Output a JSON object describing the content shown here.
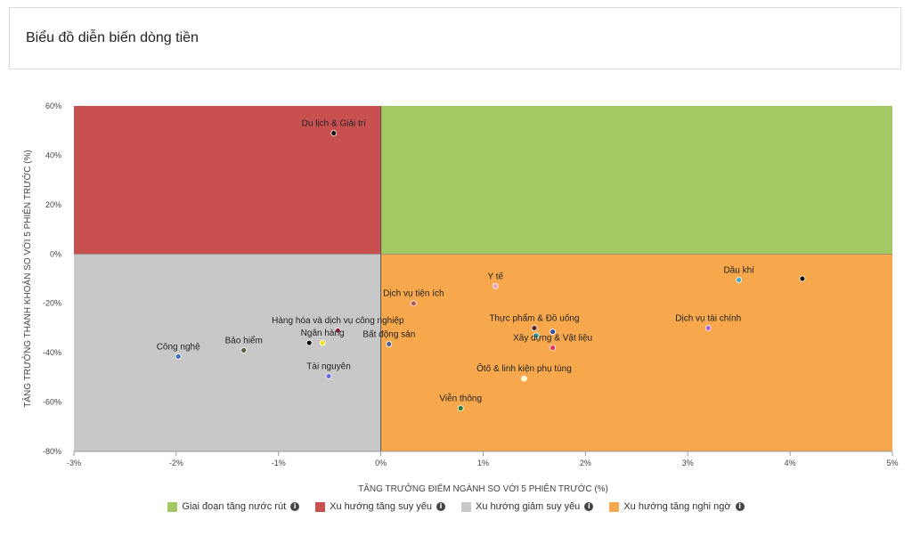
{
  "header": {
    "title": "Biểu đồ diễn biến dòng tiền"
  },
  "colors": {
    "green": "#a3c964",
    "red": "#c85150",
    "gray": "#c8c8c8",
    "orange": "#f8a84c"
  },
  "legend": [
    {
      "label": "Giai đoạn tăng nước rút",
      "color": "#a3c964",
      "icon": "info-icon"
    },
    {
      "label": "Xu hướng tăng suy yếu",
      "color": "#c85150",
      "icon": "info-icon"
    },
    {
      "label": "Xu hướng giảm suy yếu",
      "color": "#c8c8c8",
      "icon": "info-icon"
    },
    {
      "label": "Xu hướng tăng nghi ngờ",
      "color": "#f8a84c",
      "icon": "info-icon"
    }
  ],
  "chart_data": {
    "type": "scatter",
    "title": "Biểu đồ diễn biến dòng tiền",
    "xlabel": "TĂNG TRƯỞNG ĐIỂM NGÀNH SO VỚI 5 PHIÊN TRƯỚC (%)",
    "ylabel": "TĂNG TRƯỞNG THANH KHOẢN SO VỚI 5 PHIÊN TRƯỚC (%)",
    "xlim": [
      -3,
      5
    ],
    "ylim": [
      -80,
      60
    ],
    "xticks": [
      -3,
      -2,
      -1,
      0,
      1,
      2,
      3,
      4,
      5
    ],
    "xtick_labels": [
      "-3%",
      "-2%",
      "-1%",
      "0%",
      "1%",
      "2%",
      "3%",
      "4%",
      "5%"
    ],
    "yticks": [
      60,
      40,
      20,
      0,
      -20,
      -40,
      -60,
      -80
    ],
    "ytick_labels": [
      "60%",
      "40%",
      "20%",
      "0%",
      "-20%",
      "-40%",
      "-60%",
      "-80%"
    ],
    "quadrants": [
      {
        "name": "Giai đoạn tăng nước rút",
        "x": [
          0,
          5
        ],
        "y": [
          0,
          60
        ],
        "color": "#a3c964"
      },
      {
        "name": "Xu hướng tăng suy yếu",
        "x": [
          -3,
          0
        ],
        "y": [
          0,
          60
        ],
        "color": "#c85150"
      },
      {
        "name": "Xu hướng giảm suy yếu",
        "x": [
          -3,
          0
        ],
        "y": [
          -80,
          0
        ],
        "color": "#c8c8c8"
      },
      {
        "name": "Xu hướng tăng nghi ngờ",
        "x": [
          0,
          5
        ],
        "y": [
          -80,
          0
        ],
        "color": "#f8a84c"
      }
    ],
    "points": [
      {
        "label": "Du lịch & Giải trí",
        "x": -0.46,
        "y": 49,
        "color": "#111111"
      },
      {
        "label": "Dịch vụ tiện ích",
        "x": 0.32,
        "y": -20,
        "color": "#c0504d"
      },
      {
        "label": "Y tế",
        "x": 1.12,
        "y": -13,
        "color": "#e8a0b8"
      },
      {
        "label": "Dầu khí",
        "x": 3.5,
        "y": -10.5,
        "color": "#4bacc6"
      },
      {
        "label": "",
        "x": 4.12,
        "y": -10,
        "color": "#111111"
      },
      {
        "label": "Hàng hóa và dịch vụ công nghiệp",
        "x": -0.42,
        "y": -31,
        "color": "#8b1a3a"
      },
      {
        "label": "Ngân hàng",
        "x": -0.57,
        "y": -36,
        "color": "#f0e020"
      },
      {
        "label": "",
        "x": -0.7,
        "y": -36,
        "color": "#111111"
      },
      {
        "label": "Bất động sản",
        "x": 0.08,
        "y": -36.5,
        "color": "#4f5f8f"
      },
      {
        "label": "Bảo hiểm",
        "x": -1.34,
        "y": -39,
        "color": "#5c5c3c"
      },
      {
        "label": "Công nghệ",
        "x": -1.98,
        "y": -41.5,
        "color": "#3a6fc0"
      },
      {
        "label": "Tài nguyên",
        "x": -0.51,
        "y": -49.5,
        "color": "#6a6ae0"
      },
      {
        "label": "Thực phẩm & Đồ uống",
        "x": 1.5,
        "y": -30,
        "color": "#5a2020"
      },
      {
        "label": "",
        "x": 1.68,
        "y": -31.5,
        "color": "#3050a0"
      },
      {
        "label": "Xây dựng & Vật liệu",
        "x": 1.68,
        "y": -38,
        "color": "#e03060"
      },
      {
        "label": "",
        "x": 1.52,
        "y": -33,
        "color": "#30a0a0"
      },
      {
        "label": "Dịch vụ tài chính",
        "x": 3.2,
        "y": -30,
        "color": "#b060d0"
      },
      {
        "label": "Ôtô & linh kiện phụ tùng",
        "x": 1.4,
        "y": -50.5,
        "color": "#ffffcc"
      },
      {
        "label": "Viễn thông",
        "x": 0.78,
        "y": -62.5,
        "color": "#2e7d32"
      }
    ]
  }
}
